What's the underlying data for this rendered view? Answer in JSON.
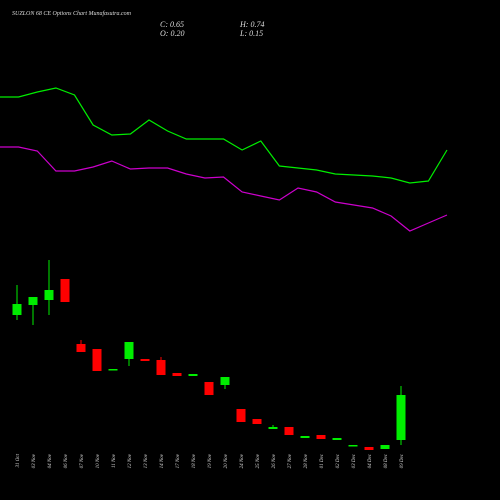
{
  "chart_data": {
    "type": "candlestick",
    "title": "SUZLON 68 CE Options Chart Munafasutra.com",
    "ohlc_labels": [
      "C: 0.65",
      "H: 0.74",
      "O: 0.20",
      "L: 0.15"
    ],
    "categories": [
      "31 Oct",
      "03 Nov",
      "04 Nov",
      "06 Nov",
      "07 Nov",
      "10 Nov",
      "11 Nov",
      "12 Nov",
      "13 Nov",
      "14 Nov",
      "17 Nov",
      "18 Nov",
      "19 Nov",
      "20 Nov",
      "24 Nov",
      "25 Nov",
      "26 Nov",
      "27 Nov",
      "28 Nov",
      "01 Dec",
      "02 Dec",
      "03 Dec",
      "04 Dec",
      "08 Dec",
      "09 Dec"
    ],
    "open": [
      1.45,
      1.55,
      1.6,
      1.81,
      1.16,
      1.11,
      0.9,
      1.01,
      1.01,
      1.0,
      0.87,
      0.84,
      0.78,
      0.75,
      0.51,
      0.41,
      0.31,
      0.33,
      0.22,
      0.25,
      0.2,
      0.14,
      0.13,
      0.11,
      0.2
    ],
    "high": [
      1.75,
      1.63,
      2.0,
      1.81,
      1.2,
      1.11,
      0.91,
      1.18,
      1.01,
      1.03,
      0.87,
      0.86,
      0.78,
      0.83,
      0.51,
      0.41,
      0.35,
      0.33,
      0.24,
      0.25,
      0.22,
      0.15,
      0.13,
      0.15,
      0.74
    ],
    "low": [
      1.4,
      1.35,
      1.45,
      1.58,
      1.08,
      0.89,
      0.9,
      0.94,
      0.99,
      0.85,
      0.84,
      0.84,
      0.65,
      0.71,
      0.38,
      0.36,
      0.31,
      0.25,
      0.22,
      0.21,
      0.2,
      0.14,
      0.1,
      0.11,
      0.15
    ],
    "close": [
      1.56,
      1.63,
      1.7,
      1.58,
      1.08,
      0.89,
      0.91,
      1.18,
      0.99,
      0.85,
      0.84,
      0.86,
      0.65,
      0.83,
      0.38,
      0.36,
      0.33,
      0.25,
      0.24,
      0.21,
      0.22,
      0.15,
      0.1,
      0.15,
      0.65
    ],
    "up_color": "#00ee00",
    "down_color": "#ff0000",
    "lines": [
      {
        "color": "#00ee00",
        "values": [
          3.63,
          3.63,
          3.68,
          3.72,
          3.65,
          3.35,
          3.25,
          3.26,
          3.4,
          3.29,
          3.21,
          3.21,
          3.21,
          3.1,
          3.19,
          2.94,
          2.92,
          2.9,
          2.86,
          2.85,
          2.84,
          2.82,
          2.77,
          2.79,
          3.1
        ]
      },
      {
        "color": "#cc00cc",
        "values": [
          3.13,
          3.13,
          3.09,
          2.89,
          2.89,
          2.93,
          2.99,
          2.91,
          2.92,
          2.92,
          2.86,
          2.82,
          2.83,
          2.68,
          2.64,
          2.6,
          2.72,
          2.68,
          2.58,
          2.55,
          2.52,
          2.44,
          2.29,
          2.37,
          2.45
        ]
      }
    ],
    "ylim": [
      -0.4,
      4.6
    ]
  }
}
